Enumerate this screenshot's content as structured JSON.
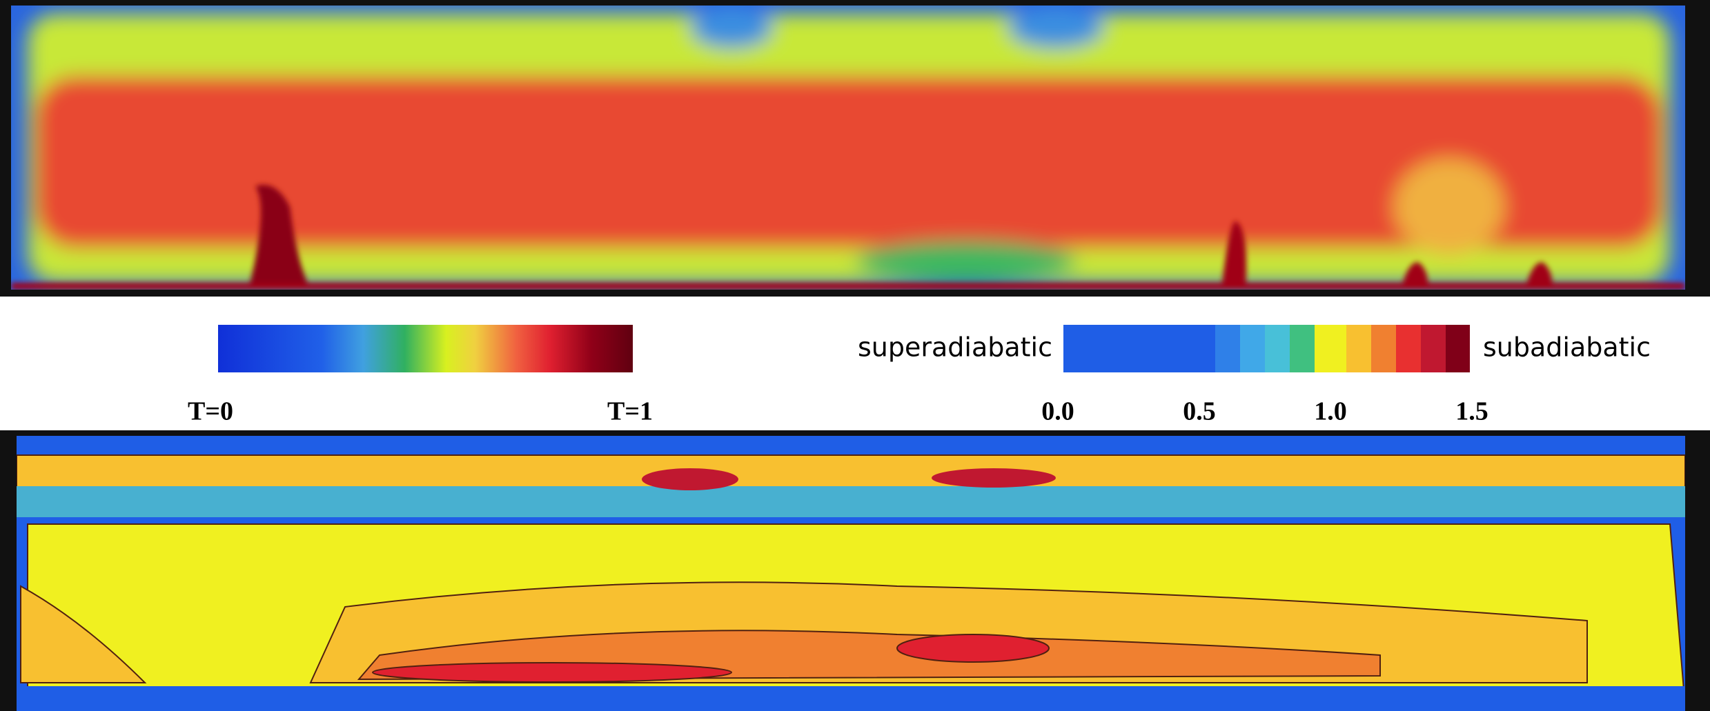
{
  "temperature_colorbar": {
    "min_label": "T=0",
    "max_label": "T=1"
  },
  "gradient_colorbar": {
    "left_label": "superadiabatic",
    "right_label": "subadiabatic",
    "ticks": [
      "0.0",
      "0.5",
      "1.0",
      "1.5"
    ]
  }
}
